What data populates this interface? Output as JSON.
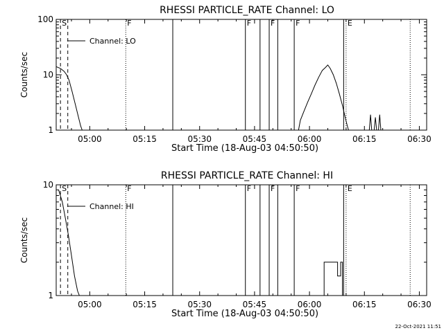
{
  "footer": {
    "timestamp": "22-Oct-2021 11:51"
  },
  "chart_data": [
    {
      "type": "line",
      "title": "RHESSI PARTICLE_RATE Channel: LO",
      "xlabel": "Start Time (18-Aug-03 04:50:50)",
      "ylabel": "Counts/sec",
      "x_unit": "time of day (HH:MM, 18-Aug-03)",
      "xlim": [
        "04:50:50",
        "06:32:00"
      ],
      "x_ticks": [
        "05:00",
        "05:15",
        "05:30",
        "05:45",
        "06:00",
        "06:15",
        "06:30"
      ],
      "y_scale": "log",
      "ylim": [
        1,
        100
      ],
      "y_ticks": [
        "1",
        "10",
        "100"
      ],
      "legend": {
        "position": "top-left",
        "label": "Channel: LO"
      },
      "markers": [
        {
          "time": "04:52:00",
          "label": "S",
          "style": "dashed"
        },
        {
          "time": "04:54:00",
          "label": "",
          "style": "dashed"
        },
        {
          "time": "05:09:50",
          "label": "F",
          "style": "dotted"
        },
        {
          "time": "05:22:40",
          "label": "",
          "style": "solid"
        },
        {
          "time": "05:42:30",
          "label": "F",
          "style": "solid"
        },
        {
          "time": "05:46:30",
          "label": "",
          "style": "solid"
        },
        {
          "time": "05:49:00",
          "label": "F",
          "style": "solid"
        },
        {
          "time": "05:51:20",
          "label": "",
          "style": "solid"
        },
        {
          "time": "05:55:50",
          "label": "F",
          "style": "solid"
        },
        {
          "time": "06:09:20",
          "label": "",
          "style": "solid"
        },
        {
          "time": "06:10:00",
          "label": "E",
          "style": "dotted"
        },
        {
          "time": "06:27:30",
          "label": "",
          "style": "dotted"
        }
      ],
      "series": [
        {
          "segments": [
            [
              [
                "04:50:50",
                14
              ],
              [
                "04:52:00",
                13
              ],
              [
                "04:53:00",
                11.5
              ],
              [
                "04:53:40",
                10
              ],
              [
                "04:54:20",
                8
              ],
              [
                "04:55:10",
                5
              ],
              [
                "04:56:00",
                3
              ],
              [
                "04:56:50",
                1.8
              ],
              [
                "04:57:30",
                1.2
              ],
              [
                "04:57:55",
                1
              ]
            ],
            [
              [
                "05:57:00",
                1
              ],
              [
                "05:57:30",
                1.5
              ],
              [
                "05:58:30",
                2.2
              ],
              [
                "05:59:30",
                3.2
              ],
              [
                "06:00:30",
                4.5
              ],
              [
                "06:01:30",
                6.5
              ],
              [
                "06:02:30",
                9
              ],
              [
                "06:03:30",
                12
              ],
              [
                "06:04:20",
                13.5
              ],
              [
                "06:05:00",
                15
              ],
              [
                "06:05:40",
                13
              ],
              [
                "06:06:30",
                10
              ],
              [
                "06:07:20",
                7
              ],
              [
                "06:08:10",
                4.5
              ],
              [
                "06:09:00",
                2.8
              ],
              [
                "06:09:40",
                1.8
              ],
              [
                "06:10:20",
                1.2
              ],
              [
                "06:10:40",
                1
              ]
            ],
            [
              [
                "06:16:20",
                1
              ],
              [
                "06:16:40",
                1.9
              ],
              [
                "06:17:00",
                1
              ]
            ],
            [
              [
                "06:17:40",
                1
              ],
              [
                "06:18:00",
                1.7
              ],
              [
                "06:18:20",
                1
              ]
            ],
            [
              [
                "06:18:50",
                1
              ],
              [
                "06:19:10",
                1.9
              ],
              [
                "06:19:30",
                1
              ]
            ]
          ]
        }
      ]
    },
    {
      "type": "line",
      "title": "RHESSI PARTICLE_RATE Channel: HI",
      "xlabel": "Start Time (18-Aug-03 04:50:50)",
      "ylabel": "Counts/sec",
      "x_unit": "time of day (HH:MM, 18-Aug-03)",
      "xlim": [
        "04:50:50",
        "06:32:00"
      ],
      "x_ticks": [
        "05:00",
        "05:15",
        "05:30",
        "05:45",
        "06:00",
        "06:15",
        "06:30"
      ],
      "y_scale": "log",
      "ylim": [
        1,
        10
      ],
      "y_ticks": [
        "1",
        "10"
      ],
      "legend": {
        "position": "top-left",
        "label": "Channel: HI"
      },
      "markers": [
        {
          "time": "04:52:00",
          "label": "S",
          "style": "dashed"
        },
        {
          "time": "04:54:00",
          "label": "",
          "style": "dashed"
        },
        {
          "time": "05:09:50",
          "label": "F",
          "style": "dotted"
        },
        {
          "time": "05:22:40",
          "label": "",
          "style": "solid"
        },
        {
          "time": "05:42:30",
          "label": "F",
          "style": "solid"
        },
        {
          "time": "05:46:30",
          "label": "",
          "style": "solid"
        },
        {
          "time": "05:49:00",
          "label": "F",
          "style": "solid"
        },
        {
          "time": "05:51:20",
          "label": "",
          "style": "solid"
        },
        {
          "time": "05:55:50",
          "label": "F",
          "style": "solid"
        },
        {
          "time": "06:09:20",
          "label": "",
          "style": "solid"
        },
        {
          "time": "06:10:00",
          "label": "E",
          "style": "dotted"
        },
        {
          "time": "06:27:30",
          "label": "",
          "style": "dotted"
        }
      ],
      "series": [
        {
          "segments": [
            [
              [
                "04:51:30",
                9
              ],
              [
                "04:52:30",
                7
              ],
              [
                "04:53:20",
                5
              ],
              [
                "04:54:10",
                3.5
              ],
              [
                "04:55:00",
                2.3
              ],
              [
                "04:55:50",
                1.5
              ],
              [
                "04:56:40",
                1.1
              ],
              [
                "04:57:10",
                1
              ]
            ],
            [
              [
                "06:04:00",
                1
              ],
              [
                "06:04:00",
                2
              ],
              [
                "06:07:40",
                2
              ],
              [
                "06:07:40",
                1.5
              ],
              [
                "06:08:30",
                1.5
              ],
              [
                "06:08:30",
                2
              ],
              [
                "06:09:00",
                2
              ],
              [
                "06:09:00",
                1
              ]
            ]
          ]
        }
      ]
    }
  ]
}
